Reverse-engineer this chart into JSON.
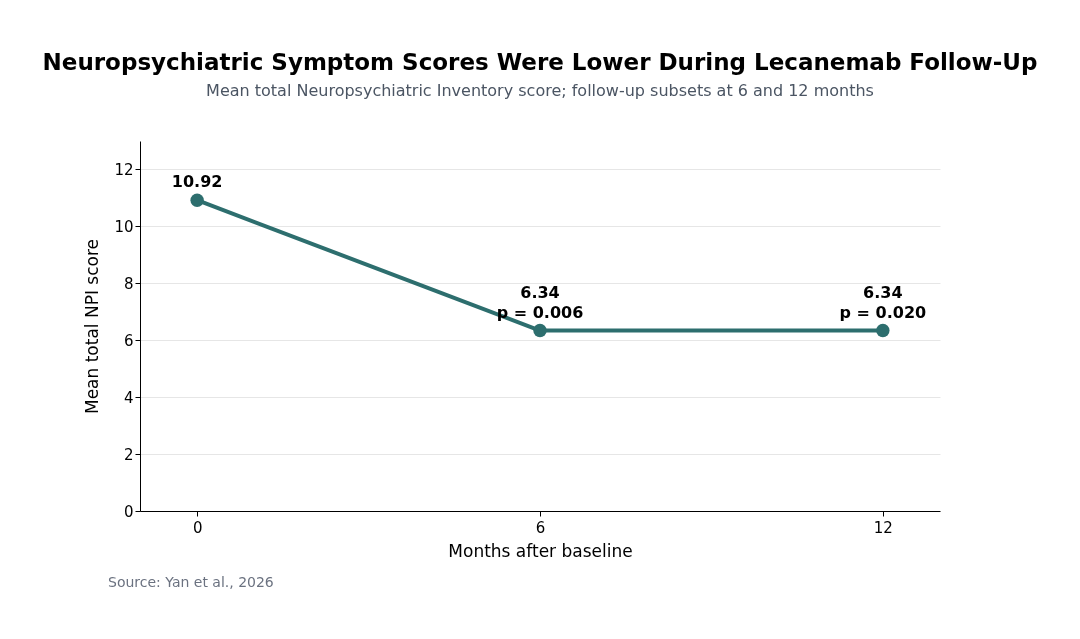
{
  "chart_data": {
    "type": "line",
    "title": "Neuropsychiatric Symptom Scores Were Lower During Lecanemab Follow-Up",
    "subtitle": "Mean total Neuropsychiatric Inventory score; follow-up subsets at 6 and 12 months",
    "xlabel": "Months after baseline",
    "ylabel": "Mean total NPI score",
    "x": [
      0,
      6,
      12
    ],
    "series": [
      {
        "color": "#2d6e6e",
        "values": [
          10.92,
          6.34,
          6.34
        ]
      }
    ],
    "xlim": [
      -1,
      13
    ],
    "ylim": [
      0,
      13
    ],
    "xticks": [
      0,
      6,
      12
    ],
    "yticks": [
      0,
      2,
      4,
      6,
      8,
      10,
      12
    ],
    "grid": "y",
    "marker": "circle",
    "line_style": "solid",
    "data_labels": true,
    "annotations": [
      {
        "text": "p = 0.006",
        "x": 6,
        "y": 6.34
      },
      {
        "text": "p = 0.020",
        "x": 12,
        "y": 6.34
      },
      "Source: Yan et al., 2026"
    ]
  }
}
